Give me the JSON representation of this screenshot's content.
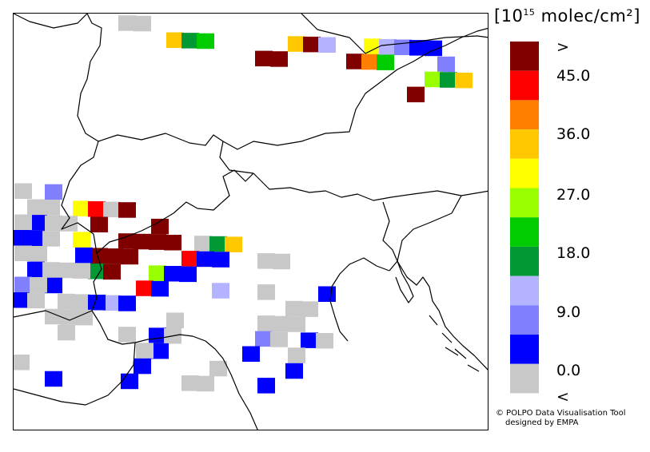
{
  "legend": {
    "unit_prefix": "[10",
    "unit_exponent": "15",
    "unit_suffix": " molec/cm²]",
    "labels": [
      ">",
      "45.0",
      "36.0",
      "27.0",
      "18.0",
      "9.0",
      "0.0",
      "<"
    ],
    "colors": [
      "#800000",
      "#ff0000",
      "#ff8000",
      "#ffc800",
      "#ffff00",
      "#99ff00",
      "#00cc00",
      "#009933",
      "#b3b3ff",
      "#8080ff",
      "#0000ff",
      "#c8c8c8"
    ]
  },
  "footer": {
    "line1": "© POLPO Data Visualisation Tool",
    "line2": "designed by EMPA"
  },
  "map_pixels": [
    {
      "c": 11,
      "col": 7,
      "row": 0
    },
    {
      "c": 11,
      "col": 8,
      "row": 0
    },
    {
      "c": 3,
      "col": 10,
      "row": 1
    },
    {
      "c": 7,
      "col": 11,
      "row": 1
    },
    {
      "c": 6,
      "col": 12,
      "row": 1
    },
    {
      "c": 3,
      "col": 18,
      "row": 1
    },
    {
      "c": 0,
      "col": 19,
      "row": 1
    },
    {
      "c": 8,
      "col": 20,
      "row": 1
    },
    {
      "c": 4,
      "col": 23,
      "row": 1
    },
    {
      "c": 8,
      "col": 24,
      "row": 1
    },
    {
      "c": 9,
      "col": 25,
      "row": 1
    },
    {
      "c": 10,
      "col": 26,
      "row": 1
    },
    {
      "c": 10,
      "col": 27,
      "row": 1
    },
    {
      "c": 0,
      "col": 16,
      "row": 2
    },
    {
      "c": 0,
      "col": 17,
      "row": 2
    },
    {
      "c": 0,
      "col": 22,
      "row": 2
    },
    {
      "c": 2,
      "col": 23,
      "row": 2
    },
    {
      "c": 6,
      "col": 24,
      "row": 2
    },
    {
      "c": 9,
      "col": 28,
      "row": 2
    },
    {
      "c": 5,
      "col": 27,
      "row": 3
    },
    {
      "c": 7,
      "col": 28,
      "row": 3
    },
    {
      "c": 3,
      "col": 29,
      "row": 3
    },
    {
      "c": 0,
      "col": 26,
      "row": 4
    },
    {
      "c": 11,
      "col": 0,
      "row": 11
    },
    {
      "c": 9,
      "col": 2,
      "row": 11
    },
    {
      "c": 4,
      "col": 4,
      "row": 12
    },
    {
      "c": 1,
      "col": 5,
      "row": 12
    },
    {
      "c": 11,
      "col": 6,
      "row": 12
    },
    {
      "c": 0,
      "col": 7,
      "row": 12
    },
    {
      "c": 11,
      "col": 1,
      "row": 12
    },
    {
      "c": 11,
      "col": 2,
      "row": 12
    },
    {
      "c": 0,
      "col": 5,
      "row": 13
    },
    {
      "c": 0,
      "col": 9,
      "row": 13
    },
    {
      "c": 10,
      "col": 1,
      "row": 13
    },
    {
      "c": 11,
      "col": 0,
      "row": 13
    },
    {
      "c": 11,
      "col": 2,
      "row": 13
    },
    {
      "c": 11,
      "col": 3,
      "row": 13
    },
    {
      "c": 0,
      "col": 7,
      "row": 14
    },
    {
      "c": 0,
      "col": 8,
      "row": 14
    },
    {
      "c": 0,
      "col": 9,
      "row": 14
    },
    {
      "c": 0,
      "col": 10,
      "row": 14
    },
    {
      "c": 4,
      "col": 4,
      "row": 14
    },
    {
      "c": 11,
      "col": 12,
      "row": 14
    },
    {
      "c": 7,
      "col": 13,
      "row": 14
    },
    {
      "c": 3,
      "col": 14,
      "row": 14
    },
    {
      "c": 10,
      "col": 0,
      "row": 14
    },
    {
      "c": 10,
      "col": 1,
      "row": 14
    },
    {
      "c": 11,
      "col": 2,
      "row": 14
    },
    {
      "c": 0,
      "col": 5,
      "row": 15
    },
    {
      "c": 0,
      "col": 6,
      "row": 15
    },
    {
      "c": 0,
      "col": 7,
      "row": 15
    },
    {
      "c": 1,
      "col": 11,
      "row": 15
    },
    {
      "c": 10,
      "col": 12,
      "row": 15
    },
    {
      "c": 10,
      "col": 13,
      "row": 15
    },
    {
      "c": 11,
      "col": 16,
      "row": 15
    },
    {
      "c": 11,
      "col": 17,
      "row": 15
    },
    {
      "c": 11,
      "col": 0,
      "row": 15
    },
    {
      "c": 11,
      "col": 1,
      "row": 15
    },
    {
      "c": 10,
      "col": 4,
      "row": 15
    },
    {
      "c": 7,
      "col": 5,
      "row": 16
    },
    {
      "c": 0,
      "col": 6,
      "row": 16
    },
    {
      "c": 5,
      "col": 9,
      "row": 16
    },
    {
      "c": 10,
      "col": 10,
      "row": 16
    },
    {
      "c": 10,
      "col": 11,
      "row": 16
    },
    {
      "c": 10,
      "col": 1,
      "row": 16
    },
    {
      "c": 11,
      "col": 2,
      "row": 16
    },
    {
      "c": 11,
      "col": 3,
      "row": 16
    },
    {
      "c": 11,
      "col": 4,
      "row": 16
    },
    {
      "c": 1,
      "col": 8,
      "row": 17
    },
    {
      "c": 10,
      "col": 9,
      "row": 17
    },
    {
      "c": 8,
      "col": 13,
      "row": 17
    },
    {
      "c": 11,
      "col": 16,
      "row": 17
    },
    {
      "c": 10,
      "col": 20,
      "row": 17
    },
    {
      "c": 9,
      "col": 0,
      "row": 17
    },
    {
      "c": 10,
      "col": 2,
      "row": 17
    },
    {
      "c": 11,
      "col": 1,
      "row": 17
    },
    {
      "c": 8,
      "col": 6,
      "row": 18
    },
    {
      "c": 10,
      "col": 7,
      "row": 18
    },
    {
      "c": 11,
      "col": 3,
      "row": 18
    },
    {
      "c": 11,
      "col": 4,
      "row": 18
    },
    {
      "c": 10,
      "col": 0,
      "row": 18
    },
    {
      "c": 11,
      "col": 1,
      "row": 18
    },
    {
      "c": 10,
      "col": 5,
      "row": 18
    },
    {
      "c": 11,
      "col": 18,
      "row": 18
    },
    {
      "c": 11,
      "col": 19,
      "row": 18
    },
    {
      "c": 11,
      "col": 10,
      "row": 19
    },
    {
      "c": 11,
      "col": 2,
      "row": 19
    },
    {
      "c": 11,
      "col": 3,
      "row": 19
    },
    {
      "c": 11,
      "col": 4,
      "row": 19
    },
    {
      "c": 11,
      "col": 16,
      "row": 19
    },
    {
      "c": 11,
      "col": 17,
      "row": 19
    },
    {
      "c": 11,
      "col": 18,
      "row": 19
    },
    {
      "c": 10,
      "col": 19,
      "row": 20
    },
    {
      "c": 11,
      "col": 20,
      "row": 20
    },
    {
      "c": 11,
      "col": 3,
      "row": 20
    },
    {
      "c": 9,
      "col": 16,
      "row": 20
    },
    {
      "c": 11,
      "col": 17,
      "row": 20
    },
    {
      "c": 11,
      "col": 7,
      "row": 20
    },
    {
      "c": 10,
      "col": 9,
      "row": 20
    },
    {
      "c": 11,
      "col": 10,
      "row": 20
    },
    {
      "c": 10,
      "col": 9,
      "row": 21
    },
    {
      "c": 11,
      "col": 8,
      "row": 21
    },
    {
      "c": 10,
      "col": 15,
      "row": 21
    },
    {
      "c": 11,
      "col": 18,
      "row": 21
    },
    {
      "c": 10,
      "col": 8,
      "row": 22
    },
    {
      "c": 11,
      "col": 0,
      "row": 22
    },
    {
      "c": 11,
      "col": 13,
      "row": 22
    },
    {
      "c": 10,
      "col": 18,
      "row": 22
    },
    {
      "c": 10,
      "col": 2,
      "row": 23
    },
    {
      "c": 10,
      "col": 7,
      "row": 23
    },
    {
      "c": 10,
      "col": 16,
      "row": 23
    },
    {
      "c": 11,
      "col": 11,
      "row": 23
    },
    {
      "c": 11,
      "col": 12,
      "row": 23
    }
  ]
}
